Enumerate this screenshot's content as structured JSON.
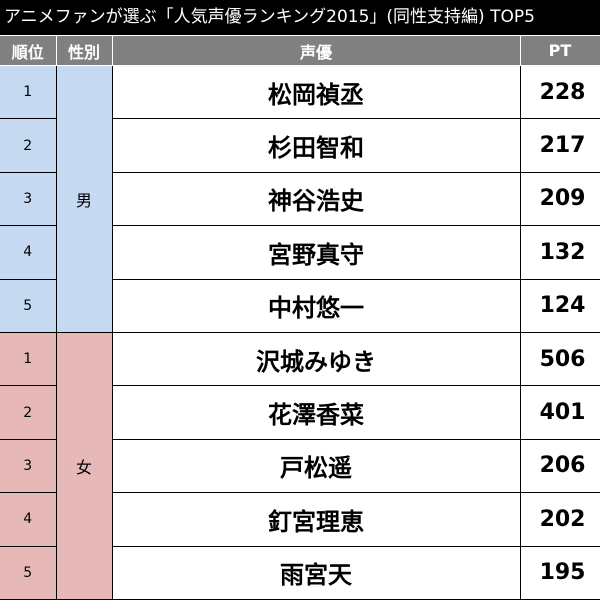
{
  "title": "アニメファンが選ぶ「人気声優ランキング2015」(同性支持編) TOP5",
  "colors": {
    "male": "#c5d9f1",
    "female": "#e6b9b8",
    "header": "#808080",
    "title_bar": "#000000"
  },
  "headers": {
    "rank": "順位",
    "gender": "性別",
    "voice_actor": "声優",
    "points": "PT"
  },
  "groups": [
    {
      "gender": "男",
      "rows": [
        {
          "rank": "1",
          "name": "松岡禎丞",
          "pt": "228"
        },
        {
          "rank": "2",
          "name": "杉田智和",
          "pt": "217"
        },
        {
          "rank": "3",
          "name": "神谷浩史",
          "pt": "209"
        },
        {
          "rank": "4",
          "name": "宮野真守",
          "pt": "132"
        },
        {
          "rank": "5",
          "name": "中村悠一",
          "pt": "124"
        }
      ]
    },
    {
      "gender": "女",
      "rows": [
        {
          "rank": "1",
          "name": "沢城みゆき",
          "pt": "506"
        },
        {
          "rank": "2",
          "name": "花澤香菜",
          "pt": "401"
        },
        {
          "rank": "3",
          "name": "戸松遥",
          "pt": "206"
        },
        {
          "rank": "4",
          "name": "釘宮理恵",
          "pt": "202"
        },
        {
          "rank": "5",
          "name": "雨宮天",
          "pt": "195"
        }
      ]
    }
  ]
}
